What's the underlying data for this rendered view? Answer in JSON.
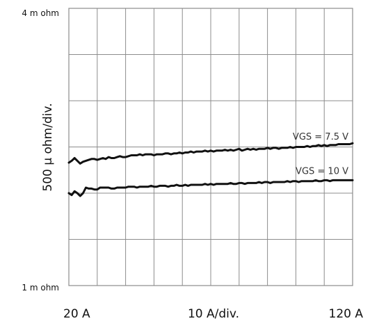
{
  "chart_data": {
    "type": "line",
    "title": "",
    "ylabel": "500 µ ohm/div.",
    "xlabel": "10  A/div.",
    "x_start_label": "20  A",
    "x_end_label": "120  A",
    "y_top_label": "4 m ohm",
    "y_bottom_label": "1 m ohm",
    "xlim": [
      20,
      120
    ],
    "ylim": [
      1.0,
      4.0
    ],
    "x_divisions": 10,
    "y_divisions": 6,
    "grid": true,
    "colors": {
      "grid": "#8c8c8c",
      "line": "#111111",
      "annotation": "#333333"
    },
    "series": [
      {
        "name": "VGS = 7.5 V",
        "x": [
          20,
          21,
          22,
          23,
          24,
          25,
          26,
          27,
          28,
          29,
          30,
          31,
          32,
          33,
          34,
          35,
          36,
          37,
          38,
          39,
          40,
          41,
          42,
          43,
          44,
          45,
          46,
          47,
          48,
          49,
          50,
          51,
          52,
          53,
          54,
          55,
          56,
          57,
          58,
          59,
          60,
          61,
          62,
          63,
          64,
          65,
          66,
          67,
          68,
          69,
          70,
          71,
          72,
          73,
          74,
          75,
          76,
          77,
          78,
          79,
          80,
          81,
          82,
          83,
          84,
          85,
          86,
          87,
          88,
          89,
          90,
          91,
          92,
          93,
          94,
          95,
          96,
          97,
          98,
          99,
          100,
          101,
          102,
          103,
          104,
          105,
          106,
          107,
          108,
          109,
          110,
          111,
          112,
          113,
          114,
          115,
          116,
          117,
          118,
          119,
          120
        ],
        "values": [
          2.33,
          2.35,
          2.38,
          2.35,
          2.32,
          2.34,
          2.35,
          2.36,
          2.37,
          2.37,
          2.36,
          2.37,
          2.38,
          2.37,
          2.39,
          2.38,
          2.38,
          2.39,
          2.4,
          2.39,
          2.39,
          2.4,
          2.41,
          2.41,
          2.41,
          2.42,
          2.41,
          2.42,
          2.42,
          2.42,
          2.41,
          2.42,
          2.42,
          2.42,
          2.43,
          2.43,
          2.42,
          2.43,
          2.43,
          2.44,
          2.43,
          2.44,
          2.44,
          2.45,
          2.44,
          2.45,
          2.45,
          2.45,
          2.46,
          2.45,
          2.46,
          2.45,
          2.46,
          2.46,
          2.46,
          2.47,
          2.46,
          2.47,
          2.46,
          2.47,
          2.48,
          2.46,
          2.47,
          2.48,
          2.47,
          2.48,
          2.47,
          2.48,
          2.48,
          2.48,
          2.49,
          2.48,
          2.49,
          2.49,
          2.48,
          2.49,
          2.49,
          2.49,
          2.5,
          2.49,
          2.5,
          2.5,
          2.5,
          2.5,
          2.51,
          2.5,
          2.51,
          2.51,
          2.52,
          2.51,
          2.52,
          2.51,
          2.52,
          2.52,
          2.52,
          2.53,
          2.53,
          2.53,
          2.53,
          2.53,
          2.54
        ]
      },
      {
        "name": "VGS = 10 V",
        "x": [
          20,
          21,
          22,
          23,
          24,
          25,
          26,
          27,
          28,
          29,
          30,
          31,
          32,
          33,
          34,
          35,
          36,
          37,
          38,
          39,
          40,
          41,
          42,
          43,
          44,
          45,
          46,
          47,
          48,
          49,
          50,
          51,
          52,
          53,
          54,
          55,
          56,
          57,
          58,
          59,
          60,
          61,
          62,
          63,
          64,
          65,
          66,
          67,
          68,
          69,
          70,
          71,
          72,
          73,
          74,
          75,
          76,
          77,
          78,
          79,
          80,
          81,
          82,
          83,
          84,
          85,
          86,
          87,
          88,
          89,
          90,
          91,
          92,
          93,
          94,
          95,
          96,
          97,
          98,
          99,
          100,
          101,
          102,
          103,
          104,
          105,
          106,
          107,
          108,
          109,
          110,
          111,
          112,
          113,
          114,
          115,
          116,
          117,
          118,
          119,
          120
        ],
        "values": [
          2.0,
          1.98,
          2.02,
          2.0,
          1.97,
          2.0,
          2.06,
          2.05,
          2.05,
          2.04,
          2.04,
          2.06,
          2.06,
          2.06,
          2.06,
          2.05,
          2.05,
          2.06,
          2.06,
          2.06,
          2.06,
          2.07,
          2.07,
          2.07,
          2.06,
          2.07,
          2.07,
          2.07,
          2.07,
          2.08,
          2.07,
          2.07,
          2.08,
          2.08,
          2.08,
          2.07,
          2.08,
          2.08,
          2.09,
          2.08,
          2.08,
          2.09,
          2.08,
          2.09,
          2.09,
          2.09,
          2.09,
          2.09,
          2.1,
          2.09,
          2.1,
          2.09,
          2.1,
          2.1,
          2.1,
          2.1,
          2.1,
          2.11,
          2.1,
          2.1,
          2.11,
          2.11,
          2.1,
          2.11,
          2.11,
          2.11,
          2.11,
          2.12,
          2.11,
          2.12,
          2.12,
          2.11,
          2.12,
          2.12,
          2.12,
          2.12,
          2.12,
          2.13,
          2.12,
          2.13,
          2.13,
          2.12,
          2.13,
          2.13,
          2.13,
          2.13,
          2.13,
          2.14,
          2.13,
          2.13,
          2.14,
          2.14,
          2.13,
          2.14,
          2.14,
          2.14,
          2.14,
          2.14,
          2.14,
          2.14,
          2.14
        ]
      }
    ],
    "annotations": [
      {
        "text": "VGS = 7.5 V",
        "series": 0,
        "anchor": "above",
        "at_x": 107
      },
      {
        "text": "VGS = 10 V",
        "series": 1,
        "anchor": "above",
        "at_x": 107
      }
    ]
  }
}
